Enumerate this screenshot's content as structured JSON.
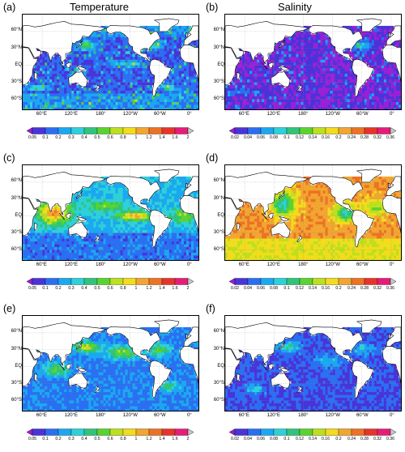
{
  "column_titles": {
    "left": "Temperature",
    "right": "Salinity"
  },
  "panels": [
    {
      "label": "(a)",
      "variable": "temperature",
      "pattern": "a"
    },
    {
      "label": "(b)",
      "variable": "salinity",
      "pattern": "b"
    },
    {
      "label": "(c)",
      "variable": "temperature",
      "pattern": "c"
    },
    {
      "label": "(d)",
      "variable": "salinity",
      "pattern": "d"
    },
    {
      "label": "(e)",
      "variable": "temperature",
      "pattern": "e"
    },
    {
      "label": "(f)",
      "variable": "salinity",
      "pattern": "f"
    }
  ],
  "map_axes": {
    "lat_labels": [
      "60°N",
      "30°N",
      "EQ",
      "30°S",
      "60°S"
    ],
    "lon_labels": [
      "60°E",
      "120°E",
      "180°",
      "120°W",
      "60°W",
      "0°"
    ]
  },
  "colorbars": {
    "temperature": {
      "labels": [
        "0.05",
        "0.1",
        "0.2",
        "0.3",
        "0.4",
        "0.5",
        "0.6",
        "0.8",
        "1",
        "1.2",
        "1.4",
        "1.6",
        "2"
      ]
    },
    "salinity": {
      "labels": [
        "0.02",
        "0.04",
        "0.06",
        "0.08",
        "0.1",
        "0.12",
        "0.14",
        "0.16",
        "0.2",
        "0.24",
        "0.28",
        "0.32",
        "0.36"
      ]
    }
  },
  "palette": [
    "#9b1fd6",
    "#4a33d9",
    "#2a6ff2",
    "#1aa8f0",
    "#2dd1d9",
    "#2fc47a",
    "#59d42e",
    "#bce01e",
    "#f2dc1c",
    "#f2a530",
    "#ec7224",
    "#e8332a",
    "#e61c78",
    "#f06bc0"
  ],
  "colors": {
    "land": "#ffffff",
    "coast": "#000000",
    "grid": "#888888"
  }
}
